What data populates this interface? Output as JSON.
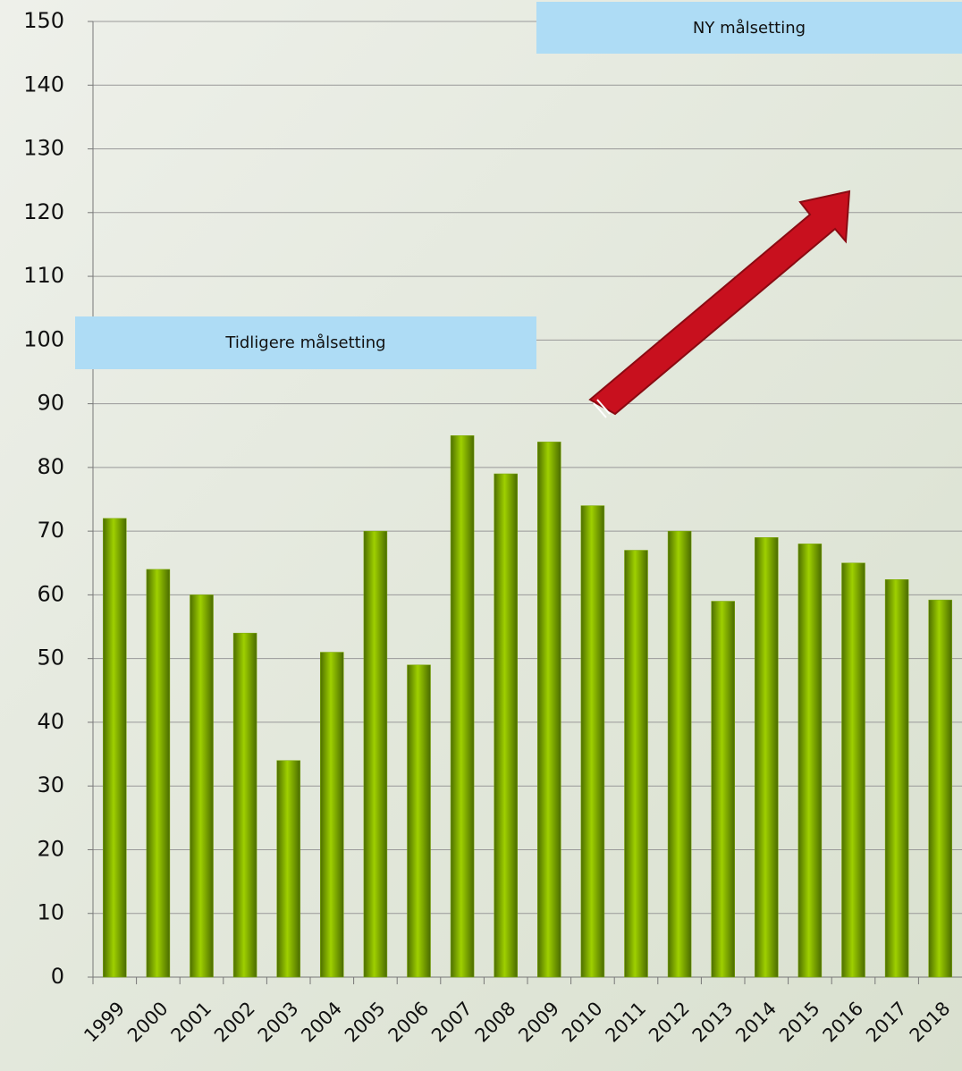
{
  "chart_data": {
    "type": "bar",
    "categories": [
      "1999",
      "2000",
      "2001",
      "2002",
      "2003",
      "2004",
      "2005",
      "2006",
      "2007",
      "2008",
      "2009",
      "2010",
      "2011",
      "2012",
      "2013",
      "2014",
      "2015",
      "2016",
      "2017",
      "2018"
    ],
    "values": [
      72,
      64,
      60,
      54,
      34,
      51,
      70,
      49,
      85,
      79,
      84,
      74,
      67,
      70,
      59,
      69,
      68,
      65,
      62.4,
      59.2
    ],
    "color": "#7aa800",
    "ylim": [
      0,
      150
    ],
    "yticks": [
      0,
      10,
      20,
      30,
      40,
      50,
      60,
      70,
      80,
      90,
      100,
      110,
      120,
      130,
      140,
      150
    ],
    "grid": true,
    "annotations": [
      "NY målsetting",
      "Tidligere målsetting"
    ]
  }
}
